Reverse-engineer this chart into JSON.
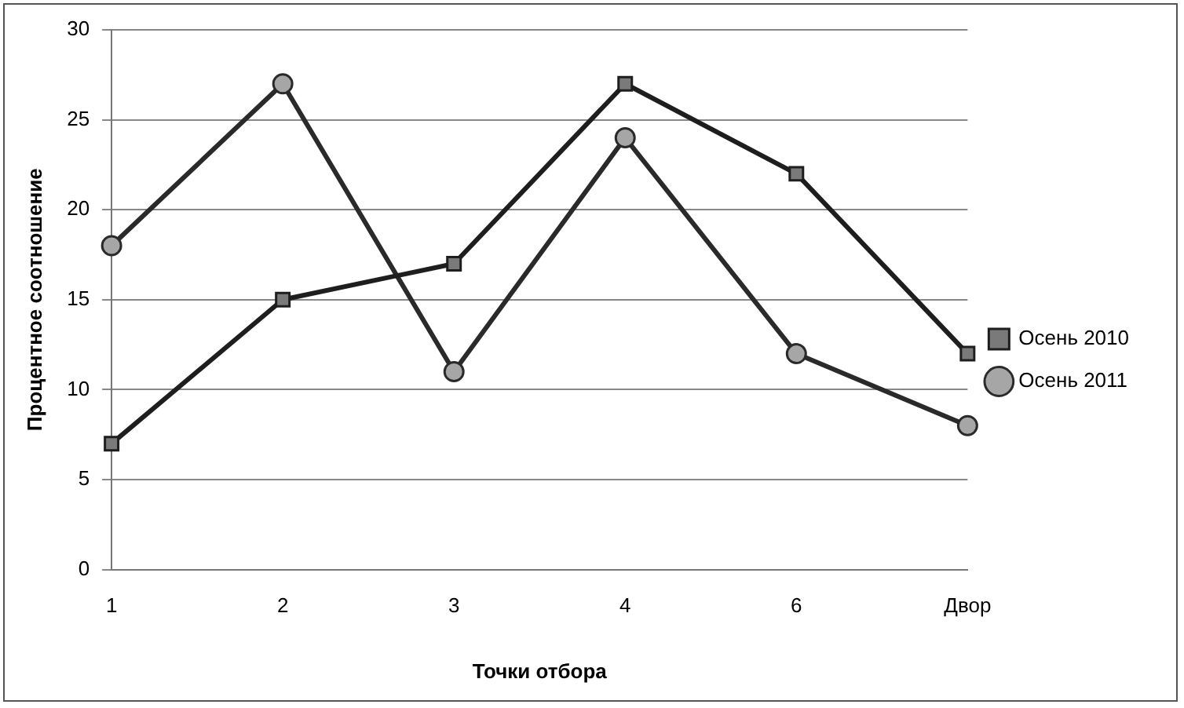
{
  "chart_data": {
    "type": "line",
    "xlabel": "Точки отбора",
    "ylabel": "Процентное соотношение",
    "categories": [
      "1",
      "2",
      "3",
      "4",
      "6",
      "Двор"
    ],
    "series": [
      {
        "name": "Осень 2010",
        "color": "#1e1e1e",
        "marker": "square",
        "values": [
          7,
          15,
          17,
          27,
          22,
          12
        ]
      },
      {
        "name": "Осень 2011",
        "color": "#2a2a2a",
        "marker": "circle",
        "values": [
          18,
          27,
          11,
          24,
          12,
          8
        ]
      }
    ],
    "ylim": [
      0,
      30
    ],
    "yticks": [
      0,
      5,
      10,
      15,
      20,
      25,
      30
    ],
    "grid": "y",
    "legend": "right",
    "line_style": "solid"
  }
}
